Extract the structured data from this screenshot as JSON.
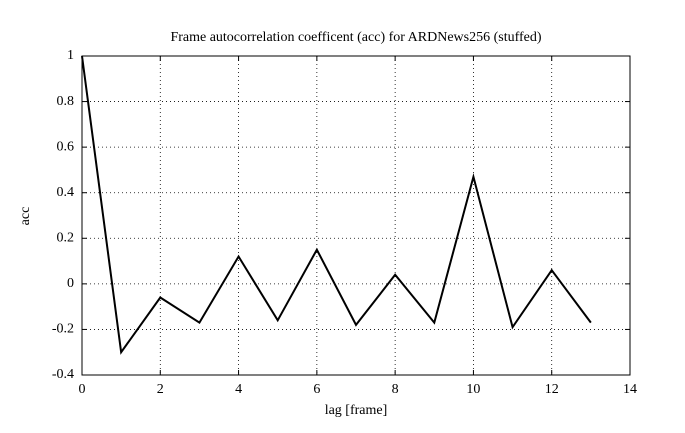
{
  "chart_data": {
    "type": "line",
    "title": "Frame autocorrelation coefficent (acc) for ARDNews256 (stuffed)",
    "x_label": "lag [frame]",
    "y_label": "acc",
    "x": [
      0,
      1,
      2,
      3,
      4,
      5,
      6,
      7,
      8,
      9,
      10,
      11,
      12,
      13
    ],
    "series": [
      {
        "color": "#000000",
        "values": [
          1,
          -0.3,
          -0.06,
          -0.17,
          0.12,
          -0.16,
          0.15,
          -0.18,
          0.04,
          -0.17,
          0.47,
          -0.19,
          0.06,
          -0.17
        ]
      }
    ],
    "xlim": [
      0,
      14
    ],
    "xticks": [
      0,
      2,
      4,
      6,
      8,
      10,
      12,
      14
    ],
    "ylim": [
      -0.4,
      1
    ],
    "yticks": [
      -0.4,
      -0.2,
      0,
      0.2,
      0.4,
      0.6,
      0.8,
      1
    ],
    "grid": true
  }
}
